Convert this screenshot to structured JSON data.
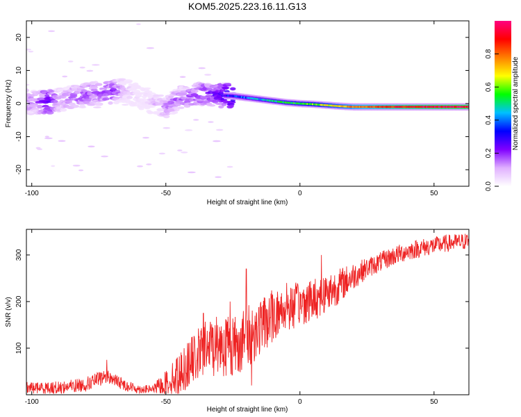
{
  "title": "KOM5.2025.223.16.11.G13",
  "chart_data": [
    {
      "type": "heatmap",
      "name": "spectrogram",
      "xlabel": "Height of straight line (km)",
      "ylabel": "Frequency (Hz)",
      "xlim": [
        -102,
        63
      ],
      "ylim": [
        -25,
        25
      ],
      "xticks": [
        -100,
        -50,
        0,
        50
      ],
      "yticks": [
        -20,
        -10,
        0,
        10,
        20
      ],
      "colorbar": {
        "label": "Normalized spectral amplitude",
        "range": [
          0.0,
          1.0
        ],
        "ticks": [
          "0.0",
          "0.2",
          "0.4",
          "0.6",
          "0.8"
        ],
        "tick_values": [
          0.0,
          0.2,
          0.4,
          0.6,
          0.8
        ],
        "colormap": [
          "#ffffff",
          "#e0b0ff",
          "#8000ff",
          "#0000ff",
          "#00c0ff",
          "#00ff00",
          "#ffff00",
          "#ff8000",
          "#ff0000",
          "#ff0080"
        ]
      },
      "ridge": [
        {
          "x": -98,
          "y": 0.5,
          "a": 0.2
        },
        {
          "x": -94,
          "y": 0.3,
          "a": 0.3
        },
        {
          "x": -90,
          "y": 1.0,
          "a": 0.18
        },
        {
          "x": -85,
          "y": 2.0,
          "a": 0.2
        },
        {
          "x": -80,
          "y": 2.5,
          "a": 0.22
        },
        {
          "x": -75,
          "y": 3.0,
          "a": 0.2
        },
        {
          "x": -70,
          "y": 3.5,
          "a": 0.25
        },
        {
          "x": -65,
          "y": 4.0,
          "a": 0.15
        },
        {
          "x": -60,
          "y": 2.0,
          "a": 0.08
        },
        {
          "x": -55,
          "y": 0.5,
          "a": 0.12
        },
        {
          "x": -50,
          "y": -1.0,
          "a": 0.18
        },
        {
          "x": -45,
          "y": 1.5,
          "a": 0.2
        },
        {
          "x": -40,
          "y": 2.5,
          "a": 0.22
        },
        {
          "x": -35,
          "y": 3.0,
          "a": 0.25
        },
        {
          "x": -30,
          "y": 2.5,
          "a": 0.28
        },
        {
          "x": -25,
          "y": 2.3,
          "a": 0.36
        },
        {
          "x": -20,
          "y": 1.8,
          "a": 0.4
        },
        {
          "x": -15,
          "y": 1.3,
          "a": 0.45
        },
        {
          "x": -10,
          "y": 0.8,
          "a": 0.48
        },
        {
          "x": -5,
          "y": 0.3,
          "a": 0.52
        },
        {
          "x": 0,
          "y": 0.0,
          "a": 0.55
        },
        {
          "x": 5,
          "y": -0.2,
          "a": 0.6
        },
        {
          "x": 10,
          "y": -0.5,
          "a": 0.65
        },
        {
          "x": 15,
          "y": -0.8,
          "a": 0.7
        },
        {
          "x": 20,
          "y": -1.0,
          "a": 0.78
        },
        {
          "x": 30,
          "y": -1.0,
          "a": 0.85
        },
        {
          "x": 40,
          "y": -1.0,
          "a": 0.9
        },
        {
          "x": 50,
          "y": -1.0,
          "a": 0.93
        },
        {
          "x": 60,
          "y": -1.0,
          "a": 0.95
        }
      ]
    },
    {
      "type": "line",
      "name": "snr",
      "xlabel": "Height of straight line (km)",
      "ylabel": "SNR (v/v)",
      "xlim": [
        -102,
        63
      ],
      "ylim": [
        0,
        355
      ],
      "xticks": [
        -100,
        -50,
        0,
        50
      ],
      "yticks": [
        100,
        200,
        300
      ],
      "color": "#ee2222",
      "trend": [
        {
          "x": -102,
          "y": 15
        },
        {
          "x": -90,
          "y": 15
        },
        {
          "x": -80,
          "y": 22
        },
        {
          "x": -72,
          "y": 40
        },
        {
          "x": -65,
          "y": 20
        },
        {
          "x": -60,
          "y": 12
        },
        {
          "x": -55,
          "y": 12
        },
        {
          "x": -50,
          "y": 25
        },
        {
          "x": -45,
          "y": 45
        },
        {
          "x": -40,
          "y": 75
        },
        {
          "x": -35,
          "y": 100
        },
        {
          "x": -30,
          "y": 110
        },
        {
          "x": -25,
          "y": 105
        },
        {
          "x": -20,
          "y": 120
        },
        {
          "x": -15,
          "y": 145
        },
        {
          "x": -10,
          "y": 170
        },
        {
          "x": -5,
          "y": 185
        },
        {
          "x": 0,
          "y": 195
        },
        {
          "x": 5,
          "y": 205
        },
        {
          "x": 10,
          "y": 220
        },
        {
          "x": 15,
          "y": 235
        },
        {
          "x": 20,
          "y": 255
        },
        {
          "x": 25,
          "y": 272
        },
        {
          "x": 30,
          "y": 285
        },
        {
          "x": 35,
          "y": 298
        },
        {
          "x": 40,
          "y": 308
        },
        {
          "x": 45,
          "y": 315
        },
        {
          "x": 50,
          "y": 320
        },
        {
          "x": 55,
          "y": 325
        },
        {
          "x": 63,
          "y": 330
        }
      ],
      "noise": [
        {
          "x": -102,
          "y": 12
        },
        {
          "x": -75,
          "y": 16
        },
        {
          "x": -55,
          "y": 8
        },
        {
          "x": -45,
          "y": 45
        },
        {
          "x": -30,
          "y": 70
        },
        {
          "x": -20,
          "y": 70
        },
        {
          "x": -5,
          "y": 50
        },
        {
          "x": 10,
          "y": 45
        },
        {
          "x": 25,
          "y": 22
        },
        {
          "x": 63,
          "y": 18
        }
      ],
      "spikes": [
        {
          "x": -72,
          "y": 75
        },
        {
          "x": -36,
          "y": 175
        },
        {
          "x": -26,
          "y": 200
        },
        {
          "x": -20,
          "y": 270
        },
        {
          "x": -18,
          "y": 20
        },
        {
          "x": -5,
          "y": 240
        },
        {
          "x": 8,
          "y": 300
        }
      ]
    }
  ]
}
